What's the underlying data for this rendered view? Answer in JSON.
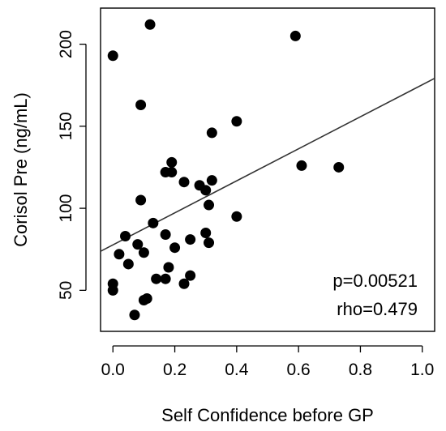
{
  "chart_data": {
    "type": "scatter",
    "xlabel": "Self Confidence before GP",
    "ylabel": "Corisol Pre (ng/mL)",
    "xlim": [
      -0.04,
      1.04
    ],
    "ylim": [
      25,
      222
    ],
    "x_ticks": [
      0.0,
      0.2,
      0.4,
      0.6,
      0.8,
      1.0
    ],
    "x_tick_labels": [
      "0.0",
      "0.2",
      "0.4",
      "0.6",
      "0.8",
      "1.0"
    ],
    "y_ticks": [
      50,
      100,
      150,
      200
    ],
    "y_tick_labels": [
      "50",
      "100",
      "150",
      "200"
    ],
    "grid": false,
    "legend": "none",
    "point_color": "#000000",
    "line_color": "#333333",
    "fit_line": {
      "x": [
        -0.04,
        1.04
      ],
      "y": [
        73.8,
        179.2
      ]
    },
    "annotations": [
      "p=0.00521",
      "rho=0.479"
    ],
    "points": [
      {
        "x": 0.12,
        "y": 212
      },
      {
        "x": 0.59,
        "y": 205
      },
      {
        "x": 0.0,
        "y": 193
      },
      {
        "x": 0.09,
        "y": 163
      },
      {
        "x": 0.4,
        "y": 153
      },
      {
        "x": 0.32,
        "y": 146
      },
      {
        "x": 0.61,
        "y": 126
      },
      {
        "x": 0.73,
        "y": 125
      },
      {
        "x": 0.19,
        "y": 128
      },
      {
        "x": 0.17,
        "y": 122
      },
      {
        "x": 0.19,
        "y": 122
      },
      {
        "x": 0.23,
        "y": 116
      },
      {
        "x": 0.32,
        "y": 117
      },
      {
        "x": 0.28,
        "y": 114
      },
      {
        "x": 0.3,
        "y": 111
      },
      {
        "x": 0.09,
        "y": 105
      },
      {
        "x": 0.31,
        "y": 102
      },
      {
        "x": 0.4,
        "y": 95
      },
      {
        "x": 0.13,
        "y": 91
      },
      {
        "x": 0.3,
        "y": 85
      },
      {
        "x": 0.17,
        "y": 84
      },
      {
        "x": 0.04,
        "y": 83
      },
      {
        "x": 0.25,
        "y": 81
      },
      {
        "x": 0.31,
        "y": 79
      },
      {
        "x": 0.08,
        "y": 78
      },
      {
        "x": 0.2,
        "y": 76
      },
      {
        "x": 0.1,
        "y": 73
      },
      {
        "x": 0.02,
        "y": 72
      },
      {
        "x": 0.05,
        "y": 66
      },
      {
        "x": 0.18,
        "y": 64
      },
      {
        "x": 0.25,
        "y": 59
      },
      {
        "x": 0.14,
        "y": 57
      },
      {
        "x": 0.17,
        "y": 57
      },
      {
        "x": 0.0,
        "y": 54
      },
      {
        "x": 0.23,
        "y": 54
      },
      {
        "x": 0.0,
        "y": 50
      },
      {
        "x": 0.11,
        "y": 45
      },
      {
        "x": 0.1,
        "y": 44
      },
      {
        "x": 0.07,
        "y": 35
      }
    ]
  }
}
